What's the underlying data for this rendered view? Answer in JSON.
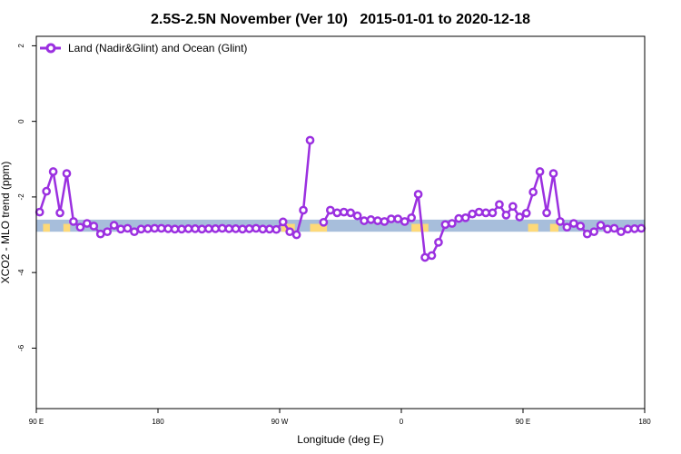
{
  "chart_data": {
    "type": "line",
    "title": "2.5S-2.5N November (Ver 10)   2015-01-01 to 2020-12-18",
    "xlabel": "Longitude (deg E)",
    "ylabel": "XCO2 - MLO trend (ppm)",
    "xlim": [
      90,
      450
    ],
    "ylim": [
      -7.6,
      2.25
    ],
    "x_ticks": [
      {
        "value": 90,
        "label": "90 E"
      },
      {
        "value": 162,
        "label": "180"
      },
      {
        "value": 234,
        "label": "90 W"
      },
      {
        "value": 306,
        "label": "0"
      },
      {
        "value": 378,
        "label": "90 E"
      },
      {
        "value": 450,
        "label": "180"
      }
    ],
    "y_ticks": [
      {
        "value": 2,
        "label": "2"
      },
      {
        "value": 0,
        "label": "0"
      },
      {
        "value": -2,
        "label": "-2"
      },
      {
        "value": -4,
        "label": "-4"
      },
      {
        "value": -6,
        "label": "-6"
      }
    ],
    "grid": false,
    "legend_position": "top-left",
    "band": {
      "y_top": -2.6,
      "y_bottom": -2.92,
      "ocean_color": "#a7bedb",
      "land_color": "#fdd978",
      "land_segments": [
        [
          94,
          98
        ],
        [
          106,
          110
        ],
        [
          235,
          243
        ],
        [
          252,
          262
        ],
        [
          312,
          322
        ],
        [
          381,
          387
        ],
        [
          394,
          399
        ]
      ]
    },
    "series": [
      {
        "name": "Land (Nadir&Glint) and Ocean (Glint)",
        "color": "#9b30e0",
        "segments": [
          {
            "x": [
              92,
              96,
              100,
              104,
              108,
              112,
              116,
              120,
              124,
              128,
              132,
              136,
              140,
              144,
              148,
              152,
              156,
              160,
              164,
              168,
              172,
              176,
              180,
              184,
              188,
              192,
              196,
              200,
              204,
              208,
              212,
              216,
              220,
              224,
              228,
              232,
              236,
              240,
              244,
              248,
              252
            ],
            "y": [
              -2.4,
              -1.85,
              -1.33,
              -2.42,
              -1.38,
              -2.65,
              -2.8,
              -2.7,
              -2.77,
              -2.98,
              -2.92,
              -2.75,
              -2.85,
              -2.83,
              -2.92,
              -2.85,
              -2.84,
              -2.83,
              -2.83,
              -2.84,
              -2.85,
              -2.85,
              -2.84,
              -2.84,
              -2.85,
              -2.84,
              -2.84,
              -2.83,
              -2.84,
              -2.84,
              -2.85,
              -2.84,
              -2.83,
              -2.85,
              -2.85,
              -2.86,
              -2.66,
              -2.92,
              -3.0,
              -2.35,
              -0.5
            ]
          },
          {
            "x": [
              260,
              264,
              268,
              272,
              276,
              280,
              284,
              288,
              292,
              296,
              300,
              304,
              308,
              312,
              316,
              320,
              324,
              328,
              332,
              336,
              340,
              344,
              348,
              352,
              356,
              360,
              364,
              368,
              372,
              376,
              380,
              384,
              388,
              392,
              396,
              400,
              404,
              408,
              412,
              416,
              420,
              424,
              428,
              432,
              436,
              440,
              444,
              448
            ],
            "y": [
              -2.67,
              -2.35,
              -2.42,
              -2.4,
              -2.42,
              -2.5,
              -2.63,
              -2.6,
              -2.63,
              -2.65,
              -2.58,
              -2.58,
              -2.65,
              -2.55,
              -1.93,
              -3.6,
              -3.55,
              -3.2,
              -2.73,
              -2.7,
              -2.57,
              -2.55,
              -2.45,
              -2.4,
              -2.42,
              -2.42,
              -2.2,
              -2.48,
              -2.25,
              -2.53,
              -2.43,
              -1.87,
              -1.33,
              -2.42,
              -1.38,
              -2.65,
              -2.8,
              -2.7,
              -2.77,
              -2.98,
              -2.92,
              -2.75,
              -2.85,
              -2.83,
              -2.92,
              -2.85,
              -2.84,
              -2.83
            ]
          }
        ]
      }
    ]
  }
}
